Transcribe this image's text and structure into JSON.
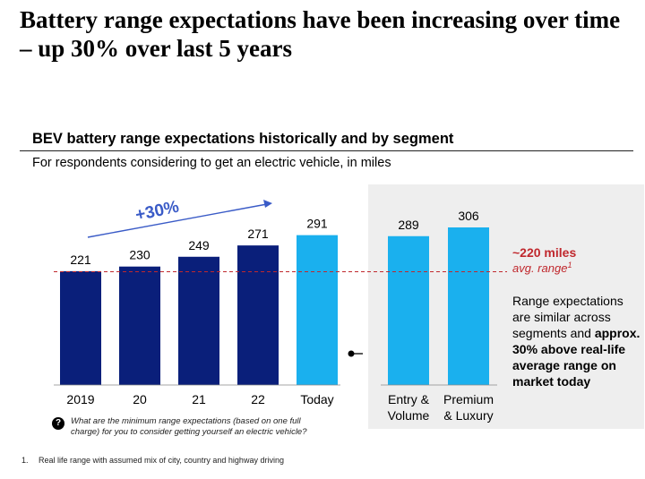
{
  "headline": "Battery range expectations have been increasing over time – up 30% over last 5 years",
  "chart_data": {
    "type": "bar",
    "title": "BEV battery range expectations historically and by segment",
    "subtitle": "For respondents considering to get an electric vehicle, in miles",
    "groups": [
      {
        "name": "historical",
        "bars": [
          {
            "label": "2019",
            "value": 221,
            "color": "#0a1f7a"
          },
          {
            "label": "20",
            "value": 230,
            "color": "#0a1f7a"
          },
          {
            "label": "21",
            "value": 249,
            "color": "#0a1f7a"
          },
          {
            "label": "22",
            "value": 271,
            "color": "#0a1f7a"
          },
          {
            "label": "Today",
            "value": 291,
            "color": "#1ab0ee"
          }
        ]
      },
      {
        "name": "segment",
        "bars": [
          {
            "label": [
              "Entry &",
              "Volume"
            ],
            "value": 289,
            "color": "#1ab0ee"
          },
          {
            "label": [
              "Premium",
              "& Luxury"
            ],
            "value": 306,
            "color": "#1ab0ee"
          }
        ]
      }
    ],
    "growth_annotation": "+30%",
    "reference_line": {
      "value": 220,
      "label": "~220 miles",
      "sublabel": "avg. range",
      "sup": "1",
      "color": "#c0282d"
    },
    "ylim": [
      0,
      306
    ],
    "colors": {
      "historical": "#0a1f7a",
      "highlight": "#1ab0ee",
      "arrow": "#3a5bc7",
      "panel": "#eeeeee"
    }
  },
  "side_note": {
    "plain": "Range expectations are similar across segments and ",
    "bold": "approx. 30% above real-life average range on market today"
  },
  "question": {
    "icon": "?",
    "text": "What are the minimum range expectations (based on one full charge) for you to consider getting yourself an electric vehicle?"
  },
  "footnote": {
    "number": "1.",
    "text": "Real life range with assumed mix of city, country and highway driving"
  }
}
